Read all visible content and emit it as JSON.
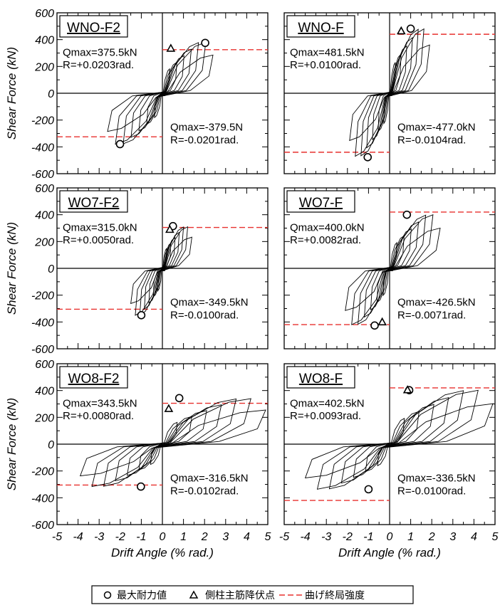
{
  "chart_data": {
    "type": "line",
    "xlabel": "Drift Angle (% rad.)",
    "ylabel": "Shear Force (kN)",
    "xlim": [
      -5,
      5
    ],
    "ylim": [
      -600,
      600
    ],
    "x_ticks": [
      "-5",
      "-4",
      "-3",
      "-2",
      "-1",
      "0",
      "1",
      "2",
      "3",
      "4",
      "5"
    ],
    "y_ticks": [
      "600",
      "400",
      "200",
      "0",
      "-200",
      "-400",
      "-600"
    ],
    "legend": {
      "max_label": "最大耐力値",
      "yield_label": "側柱主筋降伏点",
      "flex_label": "曲げ終局強度",
      "flex_color": "#e8312f"
    },
    "panels": [
      {
        "title": "WNO-F2",
        "qpos_label": "Qmax=375.5kN",
        "rpos_label": "R=+0.0203rad.",
        "qneg_label": "Qmax=-379.5N",
        "rneg_label": "R=-0.0201rad.",
        "max_pos": [
          2.03,
          375.5
        ],
        "max_neg": [
          -2.01,
          -379.5
        ],
        "yield_pos": [
          0.4,
          335
        ],
        "yield_neg": null,
        "flex_pos": 325,
        "flex_neg": -325,
        "max_drift": 2.4,
        "min_drift": -2.6,
        "pos_env": 380,
        "neg_env": 380,
        "resid": 0.3
      },
      {
        "title": "WNO-F",
        "qpos_label": "Qmax=481.5kN",
        "rpos_label": "R=+0.0100rad.",
        "qneg_label": "Qmax=-477.0kN",
        "rneg_label": "R=-0.0104rad.",
        "max_pos": [
          1.0,
          481.5
        ],
        "max_neg": [
          -1.04,
          -477.0
        ],
        "yield_pos": [
          0.55,
          465
        ],
        "yield_neg": null,
        "flex_pos": 440,
        "flex_neg": -440,
        "max_drift": 1.9,
        "min_drift": -1.9,
        "pos_env": 480,
        "neg_env": 470,
        "resid": 0.25
      },
      {
        "title": "WO7-F2",
        "qpos_label": "Qmax=315.0kN",
        "rpos_label": "R=+0.0050rad.",
        "qneg_label": "Qmax=-349.5kN",
        "rneg_label": "R=-0.0100rad.",
        "max_pos": [
          0.5,
          315.0
        ],
        "max_neg": [
          -1.0,
          -349.5
        ],
        "yield_pos": [
          0.35,
          290
        ],
        "yield_neg": null,
        "flex_pos": 305,
        "flex_neg": -305,
        "max_drift": 1.4,
        "min_drift": -1.5,
        "pos_env": 310,
        "neg_env": 350,
        "resid": 0.25
      },
      {
        "title": "WO7-F",
        "qpos_label": "Qmax=400.0kN",
        "rpos_label": "R=+0.0082rad.",
        "qneg_label": "Qmax=-426.5kN",
        "rneg_label": "R=-0.0071rad.",
        "max_pos": [
          0.82,
          400.0
        ],
        "max_neg": [
          -0.71,
          -426.5
        ],
        "yield_pos": null,
        "yield_neg": [
          -0.35,
          -400
        ],
        "flex_pos": 420,
        "flex_neg": -420,
        "max_drift": 2.4,
        "min_drift": -2.1,
        "pos_env": 400,
        "neg_env": 420,
        "resid": 0.35
      },
      {
        "title": "WO8-F2",
        "qpos_label": "Qmax=343.5kN",
        "rpos_label": "R=+0.0080rad.",
        "qneg_label": "Qmax=-316.5kN",
        "rneg_label": "R=-0.0102rad.",
        "max_pos": [
          0.8,
          343.5
        ],
        "max_neg": [
          -1.02,
          -316.5
        ],
        "yield_pos": [
          0.3,
          265
        ],
        "yield_neg": null,
        "flex_pos": 305,
        "flex_neg": -305,
        "max_drift": 4.9,
        "min_drift": -3.9,
        "pos_env": 340,
        "neg_env": 316,
        "resid": 0.5
      },
      {
        "title": "WO8-F",
        "qpos_label": "Qmax=402.5kN",
        "rpos_label": "R=+0.0093rad.",
        "qneg_label": "Qmax=-336.5kN",
        "rneg_label": "R=-0.0100rad.",
        "max_pos": [
          0.93,
          402.5
        ],
        "max_neg": [
          -1.0,
          -336.5
        ],
        "yield_pos": [
          0.85,
          405
        ],
        "yield_neg": null,
        "flex_pos": 420,
        "flex_neg": -420,
        "max_drift": 4.9,
        "min_drift": -4.0,
        "pos_env": 402,
        "neg_env": 336,
        "resid": 0.5
      }
    ]
  }
}
